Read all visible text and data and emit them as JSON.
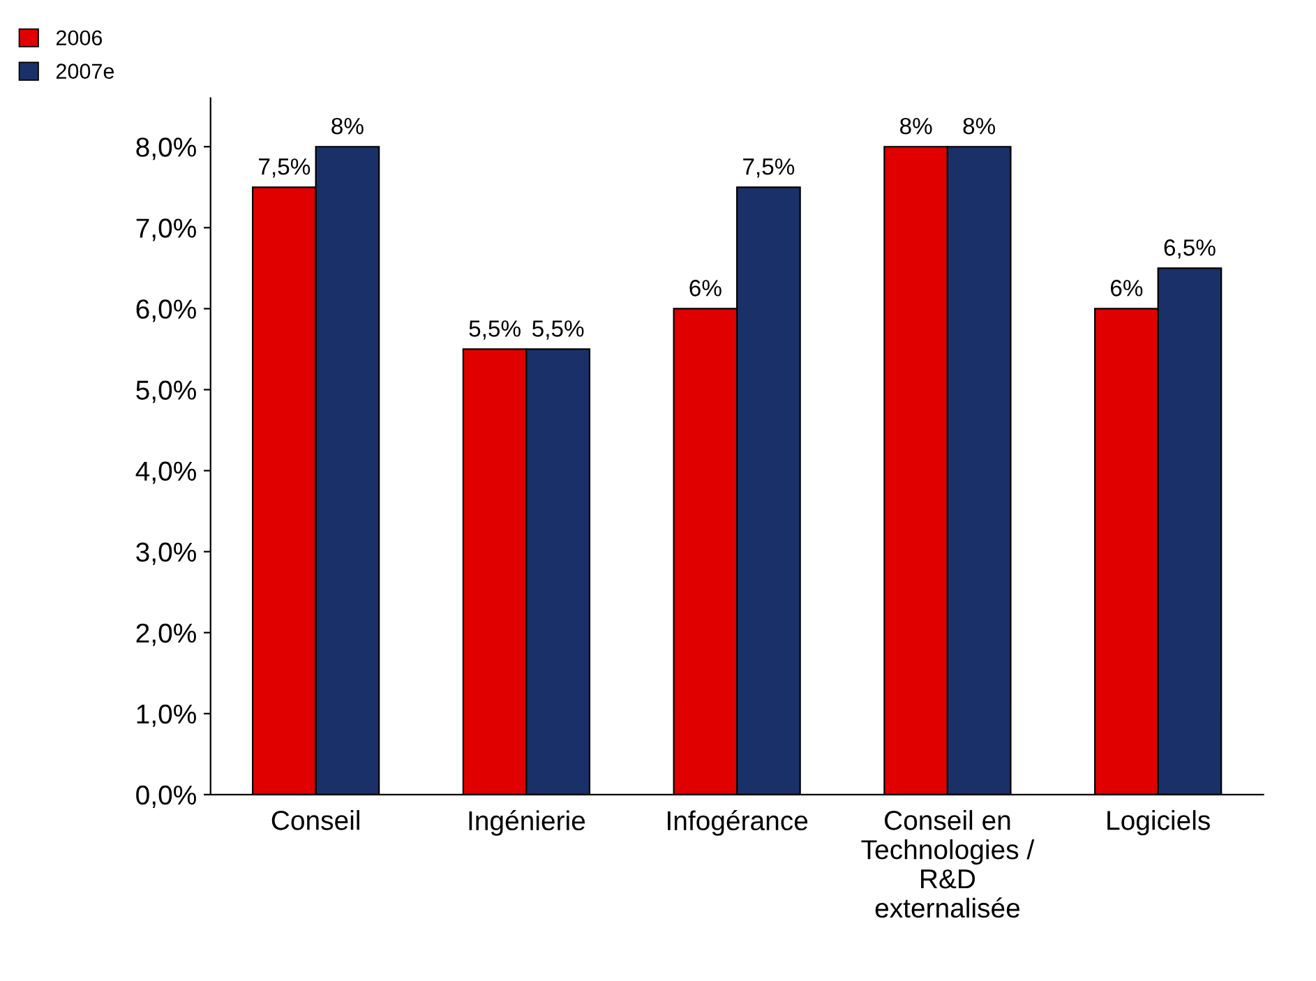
{
  "chart_data": {
    "type": "bar",
    "categories": [
      "Conseil",
      "Ingénierie",
      "Infogérance",
      "Conseil en\nTechnologies /\nR&D\nexternalisée",
      "Logiciels"
    ],
    "series": [
      {
        "name": "2006",
        "color": "#e00000",
        "values": [
          7.5,
          5.5,
          6,
          8,
          6
        ],
        "value_labels": [
          "7,5%",
          "5,5%",
          "6%",
          "8%",
          "6%"
        ]
      },
      {
        "name": "2007e",
        "color": "#1a3068",
        "values": [
          8,
          5.5,
          7.5,
          8,
          6.5
        ],
        "value_labels": [
          "8%",
          "5,5%",
          "7,5%",
          "8%",
          "6,5%"
        ]
      }
    ],
    "ylim": [
      0,
      8.6
    ],
    "yticks": [
      {
        "value": 0,
        "label": "0,0%"
      },
      {
        "value": 1,
        "label": "1,0%"
      },
      {
        "value": 2,
        "label": "2,0%"
      },
      {
        "value": 3,
        "label": "3,0%"
      },
      {
        "value": 4,
        "label": "4,0%"
      },
      {
        "value": 5,
        "label": "5,0%"
      },
      {
        "value": 6,
        "label": "6,0%"
      },
      {
        "value": 7,
        "label": "7,0%"
      },
      {
        "value": 8,
        "label": "8,0%"
      }
    ],
    "legend": "top left"
  }
}
